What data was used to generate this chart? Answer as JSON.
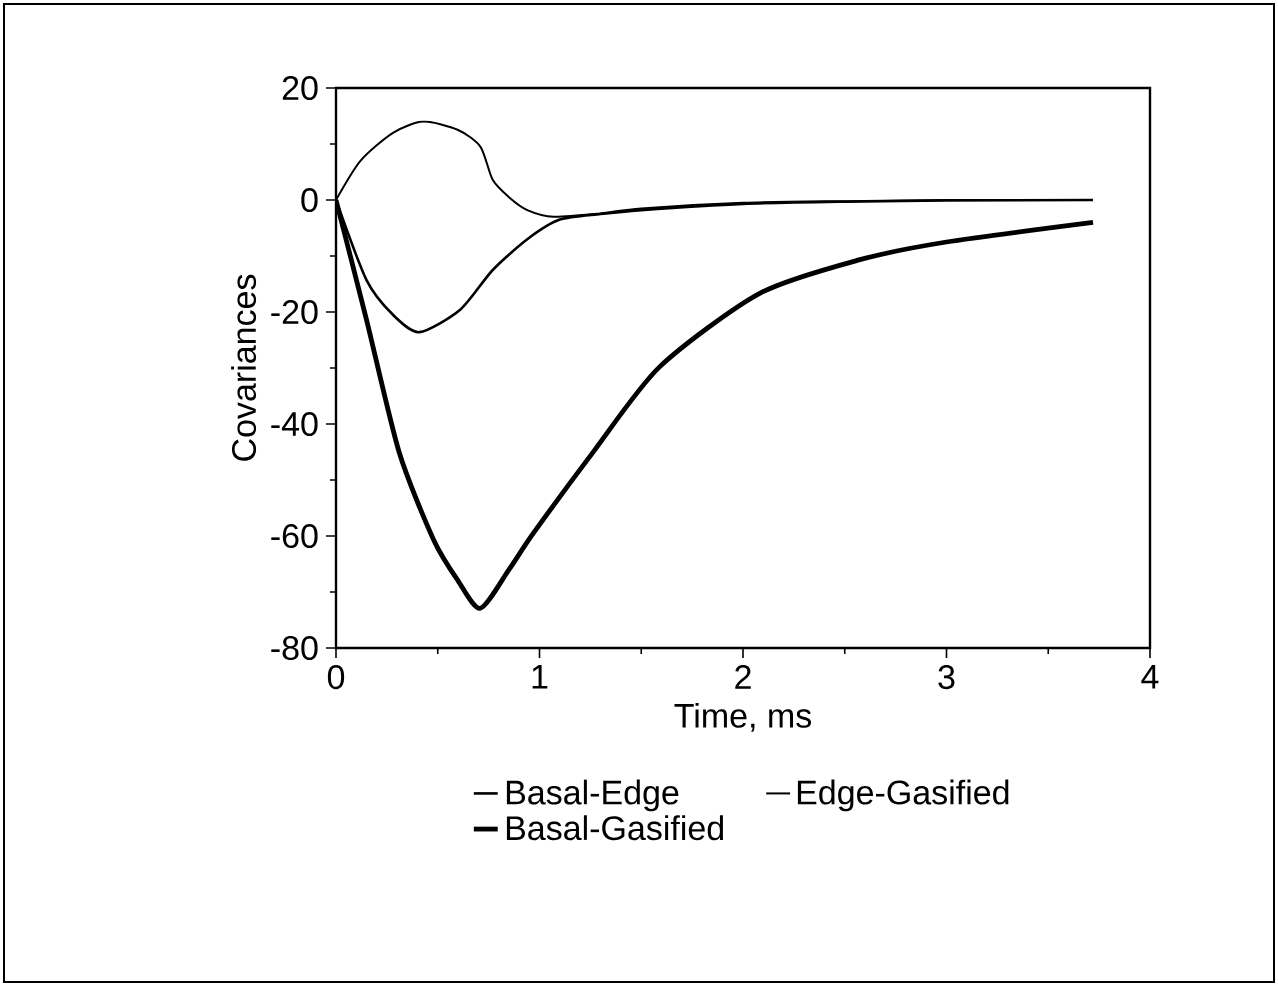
{
  "chart_data": {
    "type": "line",
    "xlabel": "Time, ms",
    "ylabel": "Covariances",
    "xlim": [
      0,
      4
    ],
    "ylim": [
      -80,
      20
    ],
    "xticks": [
      0,
      1,
      2,
      3,
      4
    ],
    "yticks": [
      -80,
      -60,
      -40,
      -20,
      0,
      20
    ],
    "legend": "bottom",
    "grid": false,
    "marker": "none",
    "line_style": "solid",
    "series": [
      {
        "name": "Basal-Edge",
        "color": "#000000",
        "x": [
          0,
          0.15,
          0.28,
          0.41,
          0.61,
          0.77,
          0.94,
          1.1,
          1.3,
          1.5,
          2,
          2.5,
          3,
          3.72
        ],
        "values": [
          0,
          -14.3,
          -20.5,
          -23.6,
          -19.6,
          -12.5,
          -7,
          -3.5,
          -2.5,
          -1.8,
          -0.7,
          -0.3,
          -0.1,
          0
        ]
      },
      {
        "name": "Edge-Gasified",
        "color": "#000000",
        "x": [
          0,
          0.12,
          0.28,
          0.43,
          0.6,
          0.71,
          0.77,
          0.85,
          0.94,
          1.07,
          1.3,
          1.5,
          2,
          2.5,
          3,
          3.72
        ],
        "values": [
          0,
          7,
          12,
          14,
          12.5,
          9.5,
          3.6,
          0.5,
          -1.8,
          -3,
          -2.4,
          -1.5,
          -0.5,
          -0.2,
          0,
          0
        ]
      },
      {
        "name": "Basal-Gasified",
        "color": "#000000",
        "x": [
          0,
          0.15,
          0.31,
          0.48,
          0.6,
          0.71,
          0.85,
          0.97,
          1.26,
          1.59,
          2.08,
          2.57,
          3,
          3.72
        ],
        "values": [
          0,
          -21.4,
          -45,
          -60.7,
          -68,
          -72.9,
          -66,
          -59.5,
          -45.2,
          -29.8,
          -16.7,
          -10.7,
          -7.5,
          -4
        ]
      }
    ]
  }
}
